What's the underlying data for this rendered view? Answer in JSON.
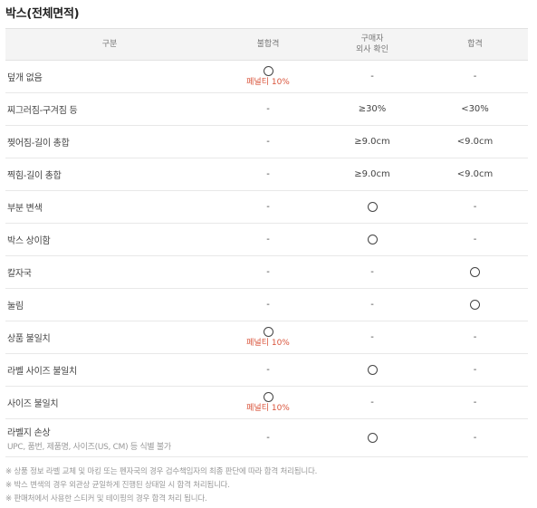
{
  "title": "박스(전체면적)",
  "header": {
    "col1": "구분",
    "col2": "불합격",
    "col3_line1": "구매자",
    "col3_line2": "외사 확인",
    "col4": "합격"
  },
  "rows": [
    {
      "label": "덮개 없음",
      "c2": "○",
      "c2_note": "페널티 10%",
      "c3": "-",
      "c4": "-"
    },
    {
      "label": "찌그러짐-구겨짐 등",
      "c2": "-",
      "c3": "≥30%",
      "c4": "<30%"
    },
    {
      "label": "찢어짐-길이 총합",
      "c2": "-",
      "c3": "≥9.0cm",
      "c4": "<9.0cm"
    },
    {
      "label": "찍힘-길이 총합",
      "c2": "-",
      "c3": "≥9.0cm",
      "c4": "<9.0cm"
    },
    {
      "label": "부분 변색",
      "c2": "-",
      "c3": "○",
      "c4": "-"
    },
    {
      "label": "박스 상이함",
      "c2": "-",
      "c3": "○",
      "c4": "-"
    },
    {
      "label": "칼자국",
      "c2": "-",
      "c3": "-",
      "c4": "○"
    },
    {
      "label": "눌림",
      "c2": "-",
      "c3": "-",
      "c4": "○"
    },
    {
      "label": "상품 불일치",
      "c2": "○",
      "c2_note": "페널티 10%",
      "c3": "-",
      "c4": "-"
    },
    {
      "label": "라벨 사이즈 불일치",
      "c2": "-",
      "c3": "○",
      "c4": "-"
    },
    {
      "label": "사이즈 불일치",
      "c2": "○",
      "c2_note": "페널티 10%",
      "c3": "-",
      "c4": "-"
    },
    {
      "label": "라벨지 손상",
      "sub": "UPC, 품번, 제품명, 사이즈(US, CM) 등 식별 불가",
      "c2": "-",
      "c3": "○",
      "c4": "-"
    }
  ],
  "notes": [
    "※ 상품 정보 라벨 교체 및 마킹 또는 펜자국의 경우 검수책임자의 최종 판단에 따라 합격 처리됩니다.",
    "※ 박스 변색의 경우 외관상 균일하게 진행된 상태일 시 합격 처리됩니다.",
    "※ 판매처에서 사용한 스티커 및 테이핑의 경우 합격 처리 됩니다."
  ]
}
